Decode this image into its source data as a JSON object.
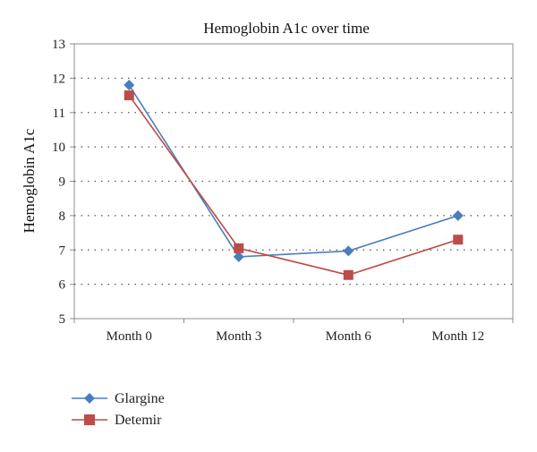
{
  "chart_data": {
    "type": "line",
    "title": "Hemoglobin A1c over time",
    "xlabel": "",
    "ylabel": "Hemoglobin A1c",
    "categories": [
      "Month 0",
      "Month 3",
      "Month 6",
      "Month 12"
    ],
    "ylim": [
      5,
      13
    ],
    "yticks": [
      5,
      6,
      7,
      8,
      9,
      10,
      11,
      12,
      13
    ],
    "grid": "horizontal-dotted",
    "legend_position": "bottom-left",
    "series": [
      {
        "name": "Glargine",
        "values": [
          11.8,
          6.8,
          6.97,
          8.0
        ],
        "color": "#4a7ebb",
        "marker": "diamond"
      },
      {
        "name": "Detemir",
        "values": [
          11.5,
          7.05,
          6.27,
          7.3
        ],
        "color": "#be4b48",
        "marker": "square"
      }
    ]
  }
}
